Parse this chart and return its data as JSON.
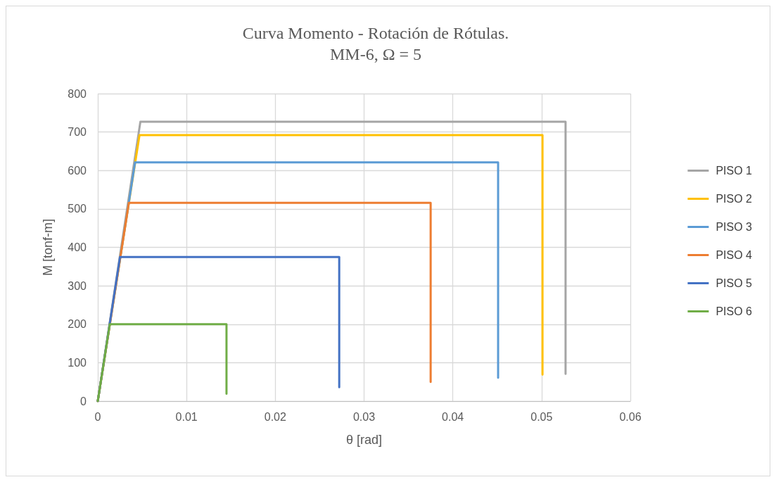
{
  "chart_data": {
    "type": "line",
    "title": "Curva Momento - Rotación de Rótulas.\nMM-6, Ω = 5",
    "xlabel": "θ [rad]",
    "ylabel": "M [tonf-m]",
    "xlim": [
      0,
      0.06
    ],
    "xticks": [
      0,
      0.01,
      0.02,
      0.03,
      0.04,
      0.05,
      0.06
    ],
    "ylim": [
      0,
      800
    ],
    "yticks": [
      0,
      100,
      200,
      300,
      400,
      500,
      600,
      700,
      800
    ],
    "grid": true,
    "legend": "right",
    "marker": "none",
    "line_style": "solid",
    "series": [
      {
        "name": "PISO 1",
        "color": "#a5a5a5",
        "x": [
          0,
          0.0048,
          0.0527,
          0.0527
        ],
        "values": [
          0,
          727,
          727,
          71
        ]
      },
      {
        "name": "PISO 2",
        "color": "#ffc000",
        "x": [
          0,
          0.0047,
          0.0501,
          0.0501
        ],
        "values": [
          0,
          692,
          692,
          69
        ]
      },
      {
        "name": "PISO 3",
        "color": "#5b9bd5",
        "x": [
          0,
          0.0042,
          0.0451,
          0.0451
        ],
        "values": [
          0,
          621,
          621,
          61
        ]
      },
      {
        "name": "PISO 4",
        "color": "#ed7d31",
        "x": [
          0,
          0.0035,
          0.0375,
          0.0375
        ],
        "values": [
          0,
          516,
          516,
          50
        ]
      },
      {
        "name": "PISO 5",
        "color": "#4472c4",
        "x": [
          0,
          0.0025,
          0.0272,
          0.0272
        ],
        "values": [
          0,
          375,
          375,
          36
        ]
      },
      {
        "name": "PISO 6",
        "color": "#70ad47",
        "x": [
          0,
          0.00135,
          0.0145,
          0.0145
        ],
        "values": [
          0,
          200,
          200,
          19
        ]
      }
    ]
  }
}
